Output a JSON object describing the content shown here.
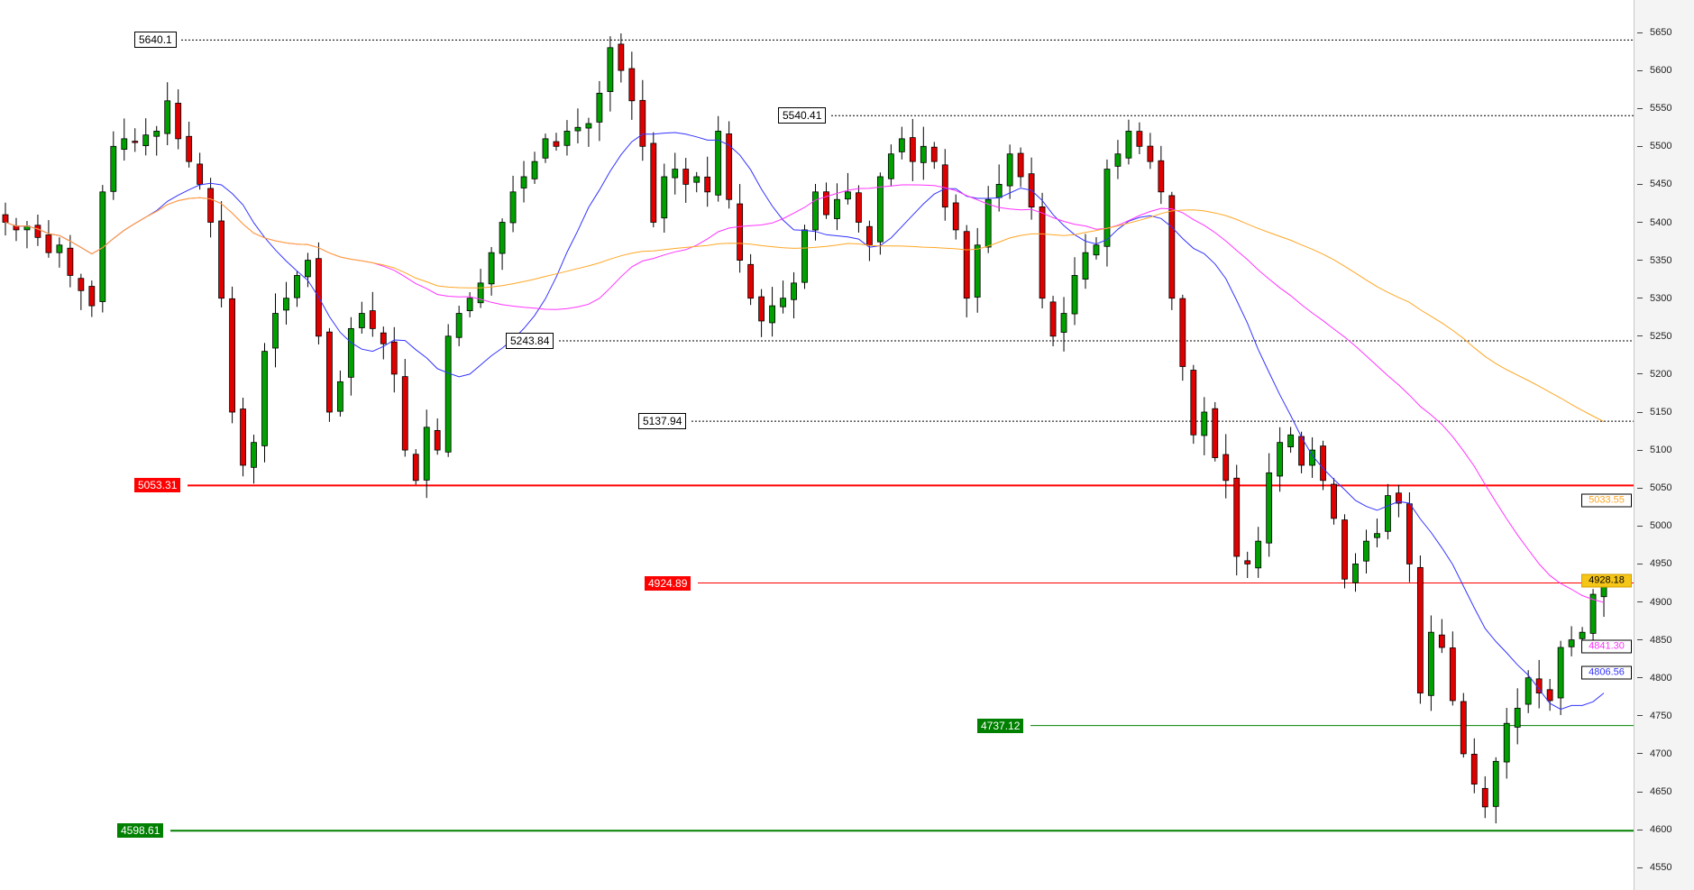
{
  "chart_data": {
    "type": "candlestick",
    "title": "",
    "ylim": [
      4530,
      5690
    ],
    "y_ticks": [
      5650,
      5600,
      5550,
      5500,
      5450,
      5400,
      5350,
      5300,
      5250,
      5200,
      5150,
      5100,
      5050,
      5000,
      4950,
      4900,
      4850,
      4800,
      4750,
      4700,
      4650,
      4600,
      4550
    ],
    "grid": false,
    "colors": {
      "up": "#00a000",
      "down": "#e00000",
      "wick": "#000000"
    },
    "closes": [
      5400,
      5390,
      5395,
      5380,
      5360,
      5370,
      5330,
      5310,
      5290,
      5440,
      5500,
      5510,
      5505,
      5515,
      5520,
      5560,
      5510,
      5480,
      5450,
      5400,
      5300,
      5150,
      5080,
      5110,
      5230,
      5280,
      5300,
      5330,
      5350,
      5250,
      5150,
      5190,
      5260,
      5280,
      5260,
      5240,
      5200,
      5100,
      5060,
      5130,
      5100,
      5250,
      5280,
      5300,
      5320,
      5360,
      5400,
      5440,
      5460,
      5480,
      5510,
      5500,
      5520,
      5525,
      5530,
      5570,
      5630,
      5600,
      5560,
      5500,
      5400,
      5460,
      5470,
      5450,
      5460,
      5440,
      5520,
      5430,
      5350,
      5300,
      5270,
      5290,
      5300,
      5320,
      5390,
      5440,
      5410,
      5430,
      5440,
      5400,
      5370,
      5460,
      5490,
      5510,
      5480,
      5500,
      5480,
      5420,
      5390,
      5300,
      5370,
      5430,
      5450,
      5490,
      5460,
      5420,
      5300,
      5250,
      5280,
      5330,
      5360,
      5370,
      5470,
      5490,
      5520,
      5500,
      5480,
      5440,
      5300,
      5210,
      5120,
      5150,
      5090,
      5060,
      4960,
      4950,
      4980,
      5070,
      5110,
      5120,
      5080,
      5100,
      5060,
      5010,
      4930,
      4950,
      4980,
      4990,
      5040,
      5030,
      4950,
      4780,
      4860,
      4840,
      4770,
      4700,
      4660,
      4630,
      4690,
      4740,
      4760,
      4800,
      4780,
      4770,
      4840,
      4850,
      4860,
      4910,
      4928.18
    ],
    "moving_averages": [
      {
        "color": "#3333ff",
        "last": "4806.56"
      },
      {
        "color": "#ff33ff",
        "last": "4841.30"
      },
      {
        "color": "#ffa726",
        "last": "5033.55"
      }
    ],
    "last_price": "4928.18",
    "last_price_bg": "#f5c518",
    "levels": [
      {
        "value": 5640.1,
        "label": "5640.1",
        "style": "dotted",
        "color": "#000000"
      },
      {
        "value": 5540.41,
        "label": "5540.41",
        "style": "dotted",
        "color": "#000000"
      },
      {
        "value": 5243.84,
        "label": "5243.84",
        "style": "dotted",
        "color": "#000000"
      },
      {
        "value": 5137.94,
        "label": "5137.94",
        "style": "dotted",
        "color": "#000000"
      },
      {
        "value": 5053.31,
        "label": "5053.31",
        "style": "solid-thick",
        "color": "#ff0000"
      },
      {
        "value": 4924.89,
        "label": "4924.89",
        "style": "solid",
        "color": "#ff0000"
      },
      {
        "value": 4737.12,
        "label": "4737.12",
        "style": "solid",
        "color": "#008000"
      },
      {
        "value": 4598.61,
        "label": "4598.61",
        "style": "solid-thick",
        "color": "#008000"
      }
    ]
  }
}
